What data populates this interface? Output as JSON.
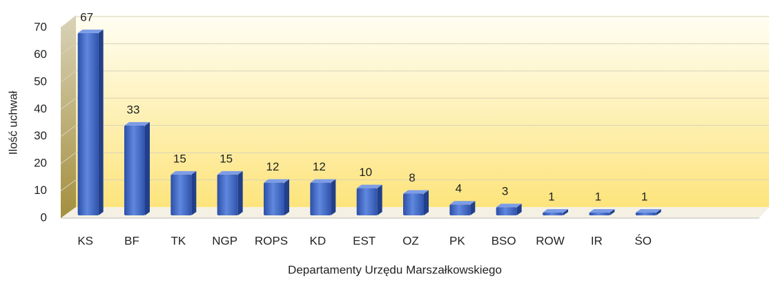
{
  "chart_data": {
    "type": "bar",
    "x_label": "Departamenty Urzędu Marszałkowskiego",
    "y_label": "Ilość uchwał",
    "categories": [
      "KS",
      "BF",
      "TK",
      "NGP",
      "ROPS",
      "KD",
      "EST",
      "OZ",
      "PK",
      "BSO",
      "ROW",
      "IR",
      "ŚO",
      null,
      null
    ],
    "values": [
      67,
      33,
      15,
      15,
      12,
      12,
      10,
      8,
      4,
      3,
      1,
      1,
      1,
      null,
      null
    ],
    "color": "#3f65c2",
    "ylim": [
      0,
      70
    ],
    "yticks": [
      0,
      10,
      20,
      30,
      40,
      50,
      60,
      70
    ],
    "grid": true
  }
}
